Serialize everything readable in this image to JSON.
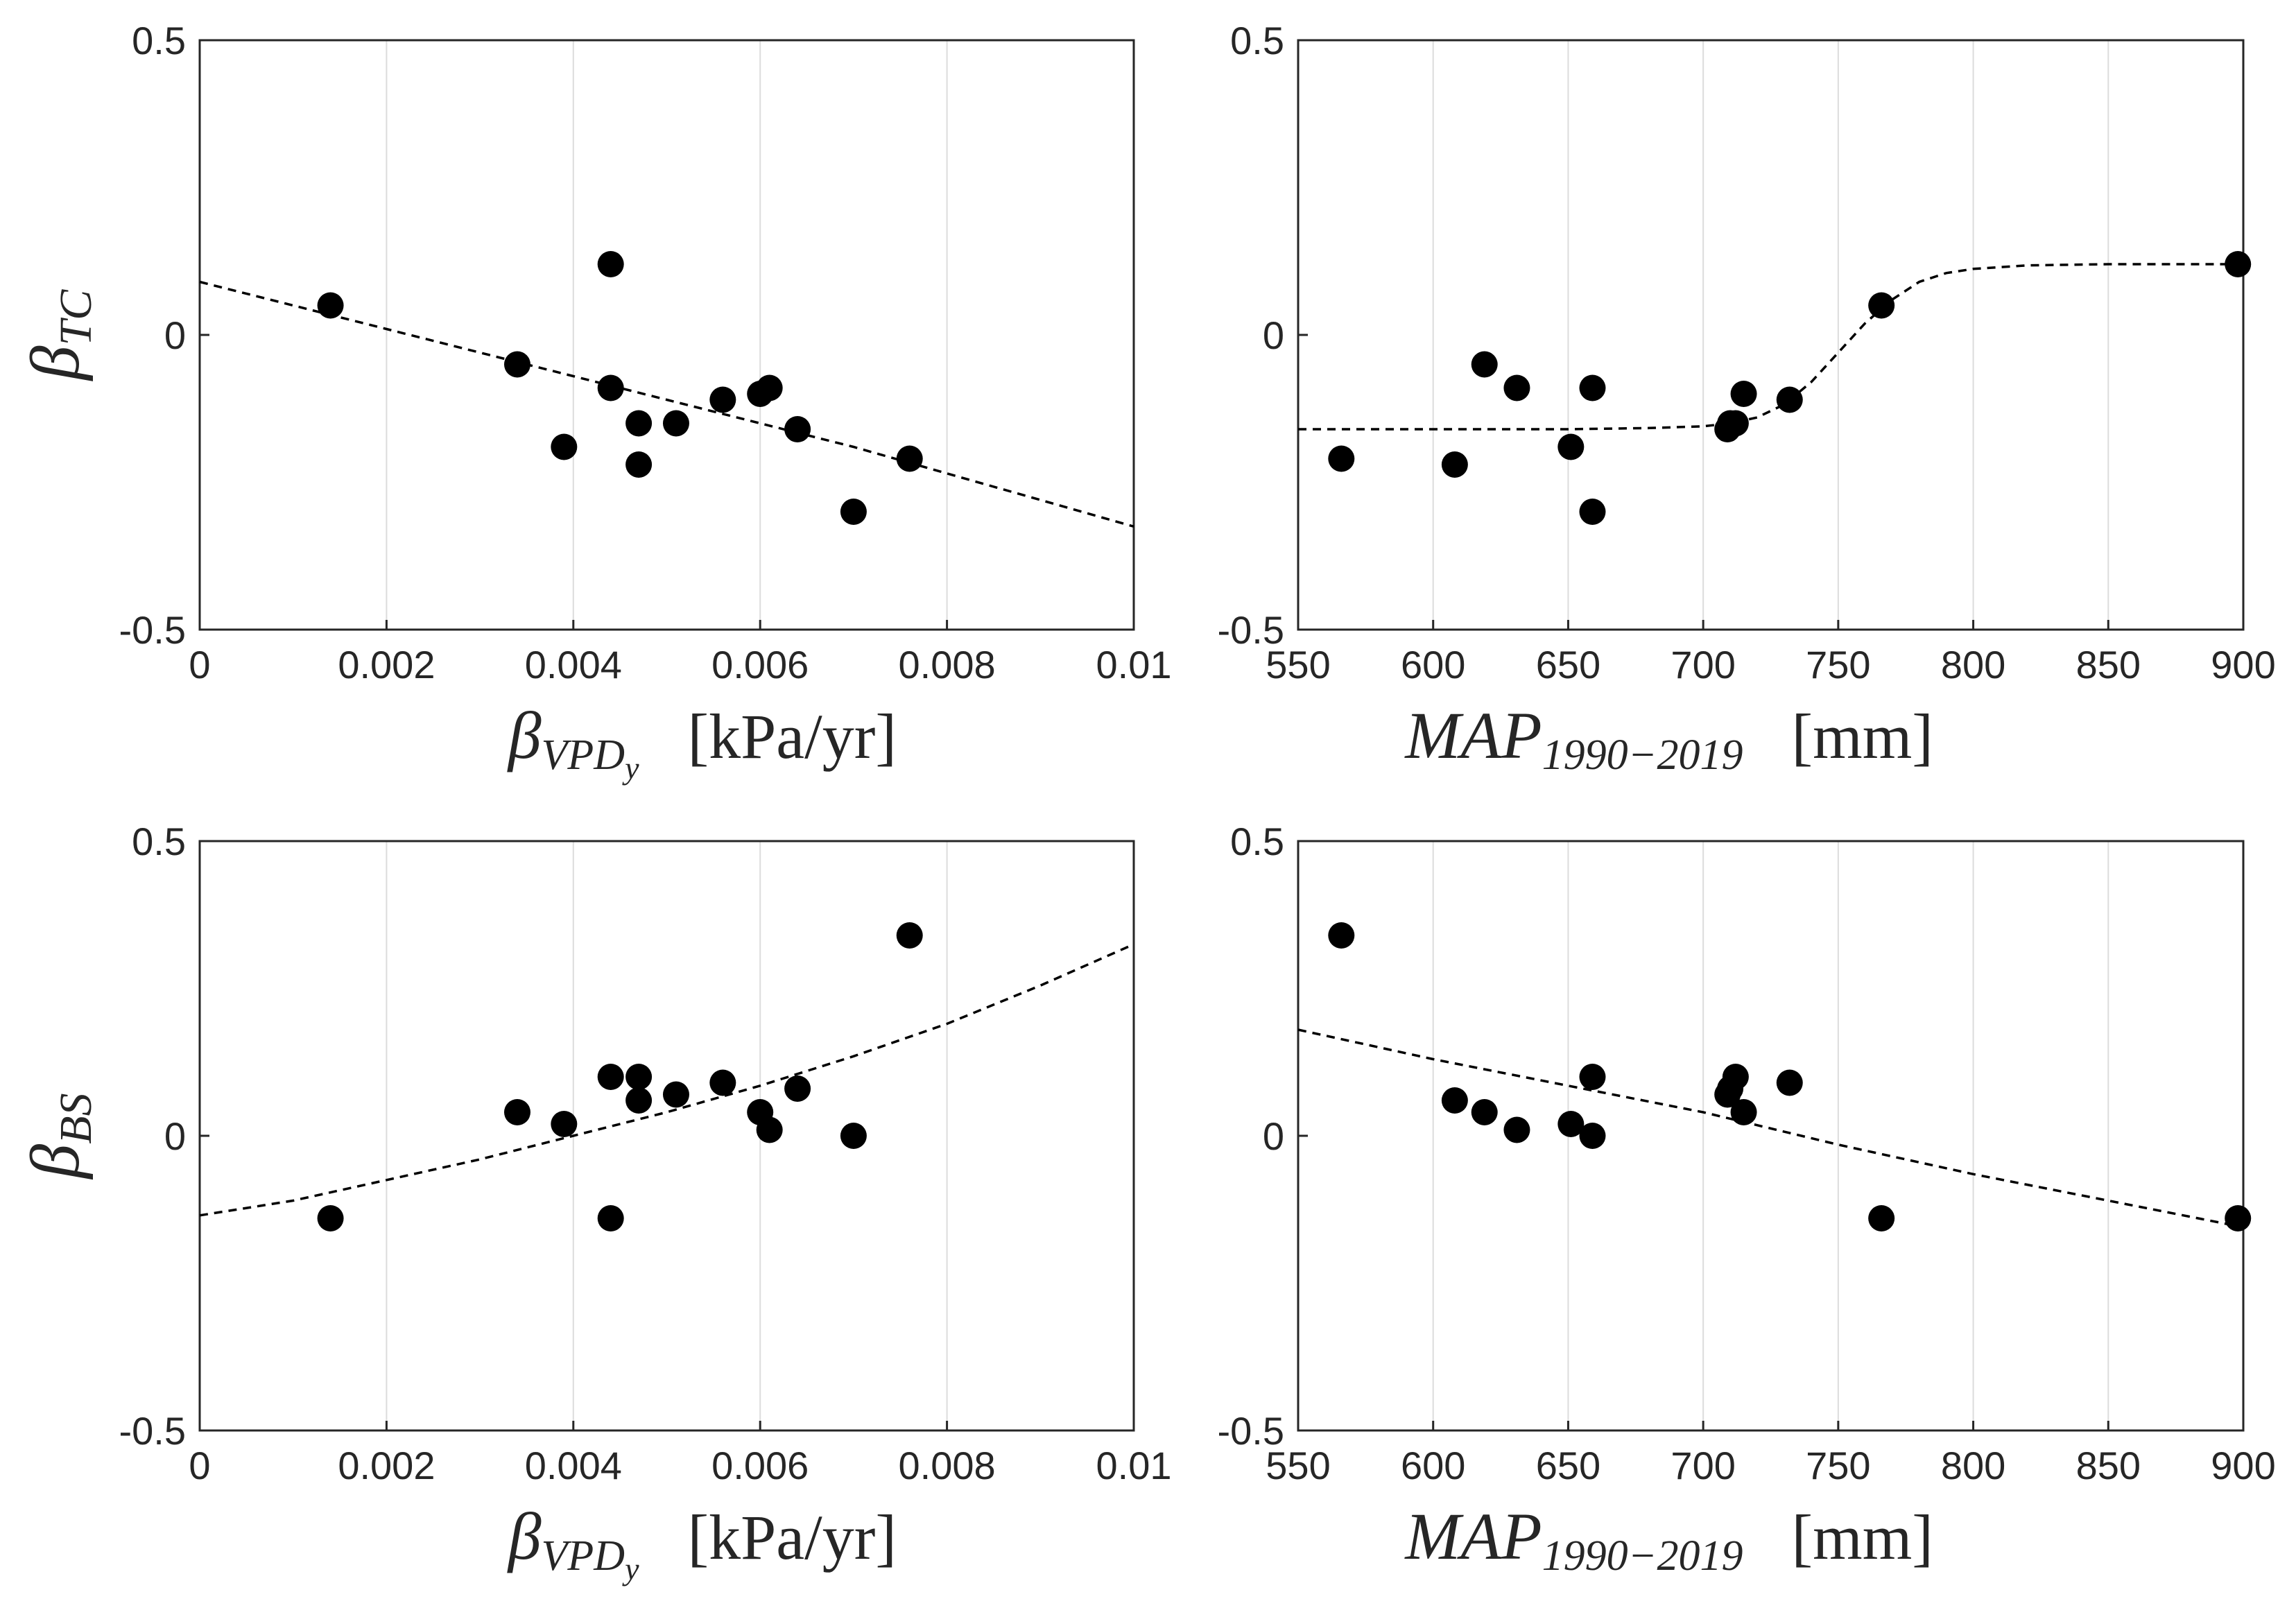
{
  "chart_data": [
    {
      "type": "scatter",
      "id": "tc-vpd",
      "xlabel": {
        "symbol": "β",
        "sub": "VPD",
        "subsub": "y",
        "unit": "[kPa/yr]"
      },
      "ylabel": {
        "symbol": "β",
        "sub": "TC"
      },
      "xlim": [
        0,
        0.01
      ],
      "ylim": [
        -0.5,
        0.5
      ],
      "xticks": [
        0,
        0.002,
        0.004,
        0.006,
        0.008,
        0.01
      ],
      "xtick_labels": [
        "0",
        "0.002",
        "0.004",
        "0.006",
        "0.008",
        "0.01"
      ],
      "yticks": [
        -0.5,
        0,
        0.5
      ],
      "ytick_labels": [
        "-0.5",
        "0",
        "0.5"
      ],
      "grid": "vertical",
      "points": {
        "x": [
          0.0014,
          0.0034,
          0.0039,
          0.0044,
          0.0044,
          0.0047,
          0.0047,
          0.0051,
          0.0056,
          0.006,
          0.0061,
          0.0064,
          0.007,
          0.0076
        ],
        "y": [
          0.05,
          -0.05,
          -0.19,
          0.12,
          -0.09,
          -0.15,
          -0.22,
          -0.15,
          -0.11,
          -0.1,
          -0.09,
          -0.16,
          -0.3,
          -0.21
        ]
      },
      "fit": {
        "style": "dashed",
        "x": [
          0,
          0.001,
          0.002,
          0.003,
          0.004,
          0.005,
          0.006,
          0.007,
          0.008,
          0.009,
          0.01
        ],
        "y": [
          0.09,
          0.05,
          0.01,
          -0.03,
          -0.07,
          -0.11,
          -0.15,
          -0.19,
          -0.235,
          -0.28,
          -0.325
        ]
      }
    },
    {
      "type": "scatter",
      "id": "tc-map",
      "xlabel": {
        "symbol": "MAP",
        "sub": "1990−2019",
        "subsub": "",
        "unit": "[mm]"
      },
      "ylabel": {
        "symbol": "",
        "sub": ""
      },
      "xlim": [
        550,
        900
      ],
      "ylim": [
        -0.5,
        0.5
      ],
      "xticks": [
        550,
        600,
        650,
        700,
        750,
        800,
        850,
        900
      ],
      "xtick_labels": [
        "550",
        "600",
        "650",
        "700",
        "750",
        "800",
        "850",
        "900"
      ],
      "yticks": [
        -0.5,
        0,
        0.5
      ],
      "ytick_labels": [
        "-0.5",
        "0",
        "0.5"
      ],
      "grid": "vertical",
      "points": {
        "x": [
          566,
          608,
          619,
          631,
          651,
          659,
          659,
          709,
          710,
          712,
          715,
          732,
          766,
          898
        ],
        "y": [
          -0.21,
          -0.22,
          -0.05,
          -0.09,
          -0.19,
          -0.09,
          -0.3,
          -0.16,
          -0.15,
          -0.15,
          -0.1,
          -0.11,
          0.05,
          0.12
        ]
      },
      "fit": {
        "style": "dashed",
        "x": [
          550,
          600,
          650,
          680,
          700,
          710,
          720,
          730,
          740,
          750,
          760,
          770,
          780,
          790,
          800,
          820,
          850,
          900
        ],
        "y": [
          -0.16,
          -0.16,
          -0.16,
          -0.158,
          -0.155,
          -0.15,
          -0.14,
          -0.118,
          -0.08,
          -0.03,
          0.02,
          0.06,
          0.09,
          0.105,
          0.112,
          0.118,
          0.12,
          0.12
        ]
      }
    },
    {
      "type": "scatter",
      "id": "bs-vpd",
      "xlabel": {
        "symbol": "β",
        "sub": "VPD",
        "subsub": "y",
        "unit": "[kPa/yr]"
      },
      "ylabel": {
        "symbol": "β",
        "sub": "BS"
      },
      "xlim": [
        0,
        0.01
      ],
      "ylim": [
        -0.5,
        0.5
      ],
      "xticks": [
        0,
        0.002,
        0.004,
        0.006,
        0.008,
        0.01
      ],
      "xtick_labels": [
        "0",
        "0.002",
        "0.004",
        "0.006",
        "0.008",
        "0.01"
      ],
      "yticks": [
        -0.5,
        0,
        0.5
      ],
      "ytick_labels": [
        "-0.5",
        "0",
        "0.5"
      ],
      "grid": "vertical",
      "points": {
        "x": [
          0.0014,
          0.0034,
          0.0039,
          0.0044,
          0.0044,
          0.0047,
          0.0047,
          0.0051,
          0.0056,
          0.006,
          0.0061,
          0.0064,
          0.007,
          0.0076
        ],
        "y": [
          -0.14,
          0.04,
          0.02,
          0.1,
          -0.14,
          0.06,
          0.1,
          0.07,
          0.09,
          0.04,
          0.01,
          0.08,
          0.0,
          0.34
        ]
      },
      "fit": {
        "style": "dashed",
        "x": [
          0,
          0.001,
          0.002,
          0.003,
          0.004,
          0.005,
          0.006,
          0.007,
          0.008,
          0.009,
          0.01
        ],
        "y": [
          -0.135,
          -0.11,
          -0.075,
          -0.04,
          0.0,
          0.04,
          0.085,
          0.135,
          0.19,
          0.255,
          0.325
        ]
      }
    },
    {
      "type": "scatter",
      "id": "bs-map",
      "xlabel": {
        "symbol": "MAP",
        "sub": "1990−2019",
        "subsub": "",
        "unit": "[mm]"
      },
      "ylabel": {
        "symbol": "",
        "sub": ""
      },
      "xlim": [
        550,
        900
      ],
      "ylim": [
        -0.5,
        0.5
      ],
      "xticks": [
        550,
        600,
        650,
        700,
        750,
        800,
        850,
        900
      ],
      "xtick_labels": [
        "550",
        "600",
        "650",
        "700",
        "750",
        "800",
        "850",
        "900"
      ],
      "yticks": [
        -0.5,
        0,
        0.5
      ],
      "ytick_labels": [
        "-0.5",
        "0",
        "0.5"
      ],
      "grid": "vertical",
      "points": {
        "x": [
          566,
          608,
          619,
          631,
          651,
          659,
          659,
          709,
          710,
          712,
          715,
          732,
          766,
          898
        ],
        "y": [
          0.34,
          0.06,
          0.04,
          0.01,
          0.02,
          0.1,
          0.0,
          0.07,
          0.08,
          0.1,
          0.04,
          0.09,
          -0.14,
          -0.14
        ]
      },
      "fit": {
        "style": "dashed",
        "x": [
          550,
          600,
          650,
          700,
          750,
          800,
          850,
          900
        ],
        "y": [
          0.18,
          0.13,
          0.085,
          0.04,
          -0.015,
          -0.065,
          -0.11,
          -0.155
        ]
      }
    }
  ]
}
